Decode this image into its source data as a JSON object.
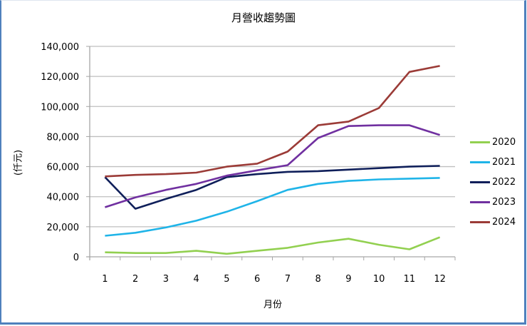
{
  "chart_data": {
    "type": "line",
    "title": "月營收趨勢圖",
    "xlabel": "月份",
    "ylabel": "(仟元)",
    "categories": [
      "1",
      "2",
      "3",
      "4",
      "5",
      "6",
      "7",
      "8",
      "9",
      "10",
      "11",
      "12"
    ],
    "ylim": [
      0,
      140000
    ],
    "yticks": [
      "0",
      "20,000",
      "40,000",
      "60,000",
      "80,000",
      "100,000",
      "120,000",
      "140,000"
    ],
    "ytick_values": [
      0,
      20000,
      40000,
      60000,
      80000,
      100000,
      120000,
      140000
    ],
    "grid": true,
    "legend_position": "right",
    "series": [
      {
        "name": "2020",
        "color": "#92d050",
        "values": [
          3000,
          2500,
          2500,
          4000,
          2000,
          4000,
          6000,
          9500,
          12000,
          8000,
          5000,
          13000
        ]
      },
      {
        "name": "2021",
        "color": "#1fb4e8",
        "values": [
          14000,
          16000,
          19500,
          24000,
          30000,
          37000,
          44500,
          48500,
          50500,
          51500,
          52000,
          52500
        ]
      },
      {
        "name": "2022",
        "color": "#0f1f5a",
        "values": [
          53000,
          32000,
          38500,
          44500,
          53000,
          55000,
          56500,
          57000,
          58000,
          59000,
          60000,
          60500
        ]
      },
      {
        "name": "2023",
        "color": "#7030a0",
        "values": [
          33000,
          39500,
          44500,
          48500,
          54000,
          57500,
          61000,
          79000,
          87000,
          87500,
          87500,
          81000
        ]
      },
      {
        "name": "2024",
        "color": "#9b3b37",
        "values": [
          53500,
          54500,
          55000,
          56000,
          60000,
          62000,
          70000,
          87500,
          90000,
          99000,
          123000,
          127000
        ]
      }
    ]
  },
  "legend": {
    "items": [
      {
        "label": "2020",
        "color": "#92d050"
      },
      {
        "label": "2021",
        "color": "#1fb4e8"
      },
      {
        "label": "2022",
        "color": "#0f1f5a"
      },
      {
        "label": "2023",
        "color": "#7030a0"
      },
      {
        "label": "2024",
        "color": "#9b3b37"
      }
    ]
  }
}
